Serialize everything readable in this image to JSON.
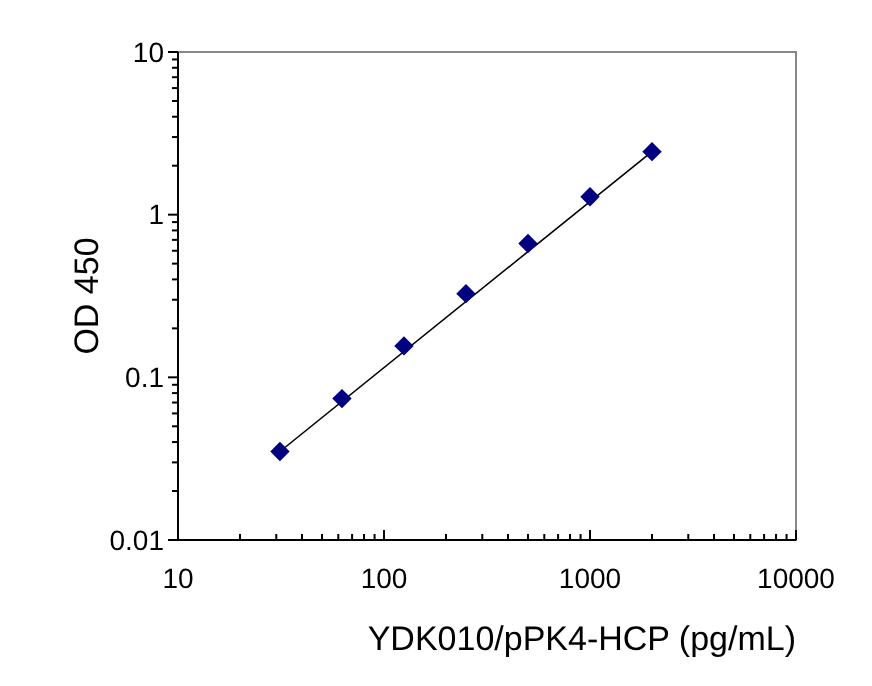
{
  "chart_data": {
    "type": "scatter",
    "xlabel": "YDK010/pPK4-HCP (pg/mL)",
    "ylabel": "OD 450",
    "log": "xy",
    "marker": "diamond",
    "grid": false,
    "xlim": [
      10,
      10000
    ],
    "ylim": [
      0.01,
      10
    ],
    "xticks": [
      10,
      {
        "value": 20,
        "label": null
      },
      {
        "value": 30,
        "label": null
      },
      {
        "value": 40,
        "label": null
      },
      {
        "value": 50,
        "label": null
      },
      {
        "value": 60,
        "label": null
      },
      {
        "value": 70,
        "label": null
      },
      {
        "value": 80,
        "label": null
      },
      {
        "value": 90,
        "label": null
      },
      100,
      {
        "value": 200,
        "label": null
      },
      {
        "value": 300,
        "label": null
      },
      {
        "value": 400,
        "label": null
      },
      {
        "value": 500,
        "label": null
      },
      {
        "value": 600,
        "label": null
      },
      {
        "value": 700,
        "label": null
      },
      {
        "value": 800,
        "label": null
      },
      {
        "value": 900,
        "label": null
      },
      1000,
      {
        "value": 2000,
        "label": null
      },
      {
        "value": 3000,
        "label": null
      },
      {
        "value": 4000,
        "label": null
      },
      {
        "value": 5000,
        "label": null
      },
      {
        "value": 6000,
        "label": null
      },
      {
        "value": 7000,
        "label": null
      },
      {
        "value": 8000,
        "label": null
      },
      {
        "value": 9000,
        "label": null
      },
      10000
    ],
    "yticks": [
      0.01,
      {
        "value": 0.02,
        "label": null
      },
      {
        "value": 0.03,
        "label": null
      },
      {
        "value": 0.04,
        "label": null
      },
      {
        "value": 0.05,
        "label": null
      },
      {
        "value": 0.06,
        "label": null
      },
      {
        "value": 0.07,
        "label": null
      },
      {
        "value": 0.08,
        "label": null
      },
      {
        "value": 0.09,
        "label": null
      },
      0.1,
      {
        "value": 0.2,
        "label": null
      },
      {
        "value": 0.3,
        "label": null
      },
      {
        "value": 0.4,
        "label": null
      },
      {
        "value": 0.5,
        "label": null
      },
      {
        "value": 0.6,
        "label": null
      },
      {
        "value": 0.7,
        "label": null
      },
      {
        "value": 0.8,
        "label": null
      },
      {
        "value": 0.9,
        "label": null
      },
      1,
      {
        "value": 2,
        "label": null
      },
      {
        "value": 3,
        "label": null
      },
      {
        "value": 4,
        "label": null
      },
      {
        "value": 5,
        "label": null
      },
      {
        "value": 6,
        "label": null
      },
      {
        "value": 7,
        "label": null
      },
      {
        "value": 8,
        "label": null
      },
      {
        "value": 9,
        "label": null
      },
      10
    ],
    "series": [
      {
        "type": "line",
        "marker": "none",
        "color": "#000000",
        "x": [
          31.25,
          2000
        ],
        "values": [
          0.035,
          2.44
        ]
      },
      {
        "color": "#000080",
        "x": [
          31.25,
          62.5,
          125,
          250,
          500,
          1000,
          2000
        ],
        "values": [
          0.035,
          0.074,
          0.156,
          0.327,
          0.665,
          1.29,
          2.44
        ]
      }
    ]
  }
}
